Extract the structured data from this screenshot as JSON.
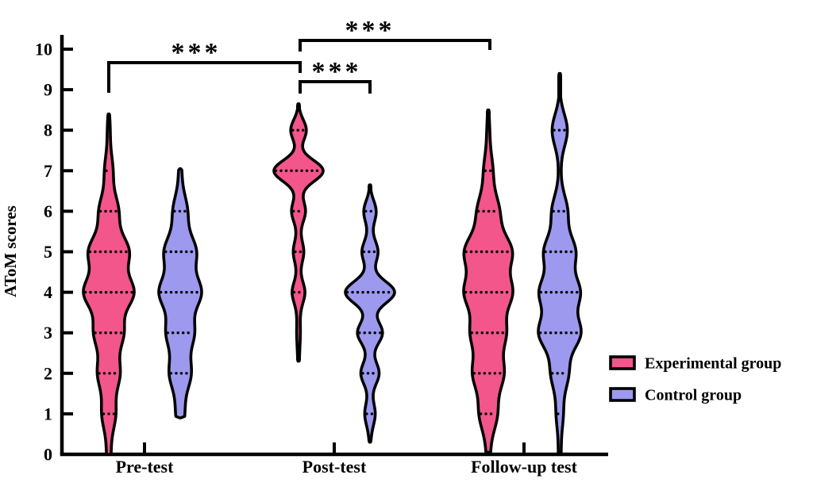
{
  "figure": {
    "background": "#ffffff",
    "axis_color": "#000000"
  },
  "legend": {
    "items": [
      {
        "label": "Experimental group",
        "color": "#F2568B"
      },
      {
        "label": "Control group",
        "color": "#9C99EE"
      }
    ]
  },
  "chart_data": {
    "type": "violin",
    "title": "",
    "xlabel": "",
    "ylabel": "AToM scores",
    "ylim": [
      0,
      10
    ],
    "yticks": [
      "0",
      "1",
      "2",
      "3",
      "4",
      "5",
      "6",
      "7",
      "8",
      "9",
      "10"
    ],
    "grid": false,
    "legend_position": "right",
    "categories": [
      "Pre-test",
      "Post-test",
      "Follow-up test"
    ],
    "series": [
      {
        "name": "Experimental group",
        "color": "#F2568B"
      },
      {
        "name": "Control group",
        "color": "#9C99EE"
      }
    ],
    "violins": [
      {
        "group": 0,
        "series": 0,
        "range": [
          0,
          8.4
        ],
        "sigma": 0.4,
        "max_halfwidth": 32,
        "score_weights": [
          [
            0,
            0.3
          ],
          [
            1,
            1.0
          ],
          [
            2,
            1.6
          ],
          [
            3,
            2.1
          ],
          [
            4,
            3.6
          ],
          [
            5,
            2.9
          ],
          [
            6,
            1.4
          ],
          [
            7,
            0.6
          ],
          [
            8,
            0.2
          ]
        ],
        "quantile_lines": [
          1,
          2,
          3,
          4,
          5,
          6,
          7
        ]
      },
      {
        "group": 0,
        "series": 1,
        "range": [
          0.9,
          7.05
        ],
        "sigma": 0.4,
        "max_halfwidth": 27,
        "score_weights": [
          [
            1,
            0.6
          ],
          [
            2,
            1.5
          ],
          [
            3,
            1.9
          ],
          [
            4,
            2.9
          ],
          [
            5,
            2.2
          ],
          [
            6,
            1.0
          ],
          [
            7,
            0.2
          ]
        ],
        "quantile_lines": [
          2,
          3,
          4,
          5,
          6
        ]
      },
      {
        "group": 1,
        "series": 0,
        "range": [
          2.3,
          8.65
        ],
        "sigma": 0.26,
        "max_halfwidth": 31,
        "score_weights": [
          [
            2.5,
            0.08
          ],
          [
            3,
            0.14
          ],
          [
            3.5,
            0.1
          ],
          [
            4,
            0.55
          ],
          [
            4.5,
            0.08
          ],
          [
            5,
            0.45
          ],
          [
            5.5,
            0.08
          ],
          [
            6,
            0.6
          ],
          [
            6.5,
            0.1
          ],
          [
            7,
            2.2
          ],
          [
            8,
            0.7
          ]
        ],
        "quantile_lines": [
          4,
          5,
          6,
          7,
          8
        ]
      },
      {
        "group": 1,
        "series": 1,
        "range": [
          0.3,
          6.65
        ],
        "sigma": 0.27,
        "max_halfwidth": 31,
        "score_weights": [
          [
            0.5,
            0.08
          ],
          [
            1,
            0.45
          ],
          [
            1.5,
            0.08
          ],
          [
            2,
            0.8
          ],
          [
            2.5,
            0.1
          ],
          [
            3,
            1.1
          ],
          [
            3.5,
            0.12
          ],
          [
            4,
            2.2
          ],
          [
            4.5,
            0.1
          ],
          [
            5,
            0.7
          ],
          [
            5.5,
            0.08
          ],
          [
            6,
            0.55
          ]
        ],
        "quantile_lines": [
          1,
          2,
          3,
          4,
          5,
          6
        ]
      },
      {
        "group": 2,
        "series": 0,
        "range": [
          0.05,
          8.5
        ],
        "sigma": 0.42,
        "max_halfwidth": 31,
        "score_weights": [
          [
            0,
            0.2
          ],
          [
            1,
            1.0
          ],
          [
            2,
            1.7
          ],
          [
            3,
            1.9
          ],
          [
            4,
            2.6
          ],
          [
            5,
            2.6
          ],
          [
            6,
            1.2
          ],
          [
            7,
            0.5
          ],
          [
            8,
            0.15
          ]
        ],
        "quantile_lines": [
          1,
          2,
          3,
          4,
          5,
          6,
          7
        ]
      },
      {
        "group": 2,
        "series": 1,
        "range": [
          0,
          9.4
        ],
        "sigma": 0.4,
        "max_halfwidth": 27,
        "score_weights": [
          [
            0,
            0.15
          ],
          [
            1,
            0.4
          ],
          [
            2,
            1.0
          ],
          [
            3,
            2.4
          ],
          [
            4,
            2.3
          ],
          [
            5,
            1.8
          ],
          [
            6,
            0.9
          ],
          [
            7,
            0.1
          ],
          [
            8,
            0.9
          ]
        ],
        "quantile_lines": [
          1,
          2,
          3,
          4,
          5,
          6,
          7,
          8
        ]
      }
    ],
    "significance": [
      {
        "from": "Pre-test Experimental",
        "to": "Post-test Experimental",
        "label": "***"
      },
      {
        "from": "Post-test Experimental",
        "to": "Follow-up test Experimental",
        "label": "***"
      },
      {
        "from": "Post-test Experimental",
        "to": "Post-test Control",
        "label": "***"
      }
    ],
    "annotation_color": "#DF1011"
  }
}
